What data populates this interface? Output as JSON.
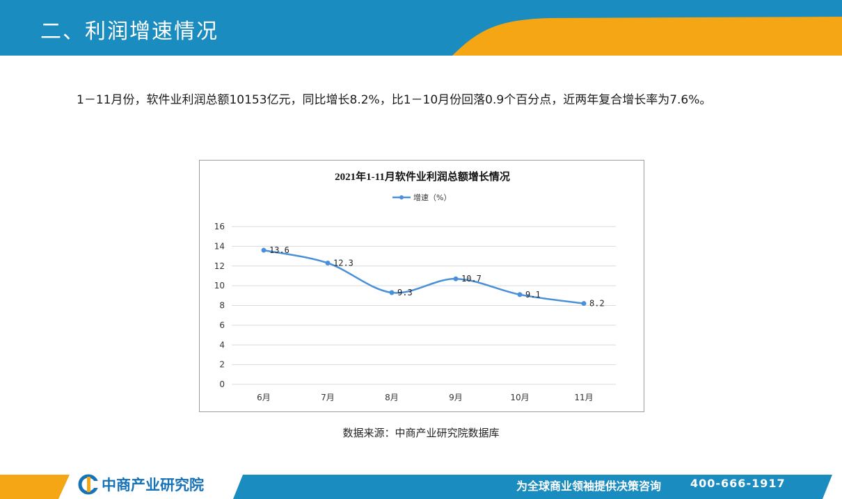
{
  "header": {
    "title": "二、利润增速情况"
  },
  "paragraph": "1－11月份，软件业利润总额10153亿元，同比增长8.2%，比1－10月份回落0.9个百分点，近两年复合增长率为7.6%。",
  "chart_data": {
    "type": "line",
    "title": "2021年1-11月软件业利润总额增长情况",
    "categories": [
      "6月",
      "7月",
      "8月",
      "9月",
      "10月",
      "11月"
    ],
    "series": [
      {
        "name": "增速（%）",
        "values": [
          13.6,
          12.3,
          9.3,
          10.7,
          9.1,
          8.2
        ],
        "color": "#4a90d9"
      }
    ],
    "data_labels": [
      "13.6",
      "12.3",
      "9.3",
      "10.7",
      "9.1",
      "8.2"
    ],
    "ylim": [
      0,
      16
    ],
    "yticks": [
      0,
      2,
      4,
      6,
      8,
      10,
      12,
      14,
      16
    ],
    "ytick_labels": [
      "0",
      "2",
      "4",
      "6",
      "8",
      "10",
      "12",
      "14",
      "16"
    ],
    "grid": true,
    "legend_position": "top-center",
    "smooth": true
  },
  "source": "数据来源：中商产业研究院数据库",
  "footer": {
    "logo_text": "中商产业研究院",
    "slogan": "为全球商业领袖提供决策咨询",
    "phone": "400-666-1917"
  },
  "colors": {
    "primary": "#1b8cc0",
    "accent": "#f5a614",
    "line": "#4a90d9"
  }
}
